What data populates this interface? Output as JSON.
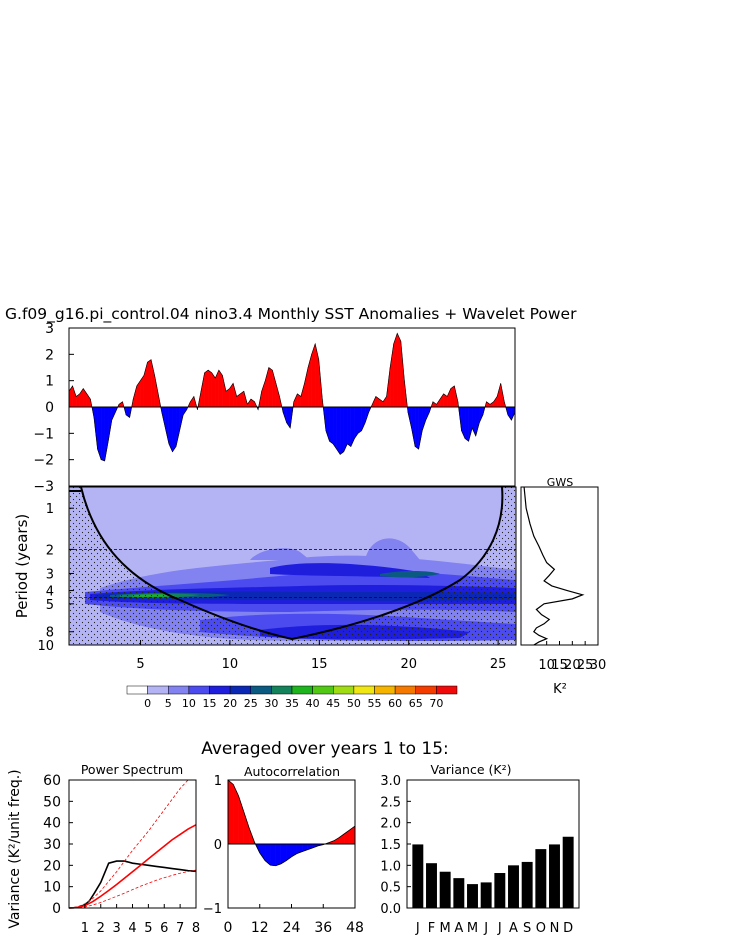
{
  "figure": {
    "main_title": "G.f09_g16.pi_control.04 nino3.4 Monthly SST Anomalies + Wavelet Power",
    "averaged_title": "Averaged over years 1 to 15:"
  },
  "chart_data": [
    {
      "id": "ts",
      "type": "area",
      "title": "G.f09_g16.pi_control.04 nino3.4 Monthly SST Anomalies + Wavelet Power",
      "xlabel": "",
      "ylabel": "",
      "xlim": [
        1,
        26
      ],
      "ylim": [
        -3,
        3
      ],
      "yticks": [
        -3,
        -2,
        -1,
        0,
        1,
        2,
        3
      ],
      "x": [
        1.0,
        1.2,
        1.4,
        1.6,
        1.8,
        2.0,
        2.2,
        2.4,
        2.6,
        2.8,
        3.0,
        3.2,
        3.4,
        3.6,
        3.8,
        4.0,
        4.2,
        4.4,
        4.6,
        4.8,
        5.0,
        5.2,
        5.4,
        5.6,
        5.8,
        6.0,
        6.2,
        6.4,
        6.6,
        6.8,
        7.0,
        7.2,
        7.4,
        7.6,
        7.8,
        8.0,
        8.2,
        8.4,
        8.6,
        8.8,
        9.0,
        9.2,
        9.4,
        9.6,
        9.8,
        10.0,
        10.2,
        10.4,
        10.6,
        10.8,
        11.0,
        11.2,
        11.4,
        11.6,
        11.8,
        12.0,
        12.2,
        12.4,
        12.6,
        12.8,
        13.0,
        13.2,
        13.4,
        13.6,
        13.8,
        14.0,
        14.2,
        14.4,
        14.6,
        14.8,
        15.0,
        15.2,
        15.4,
        15.6,
        15.8,
        16.0,
        16.2,
        16.4,
        16.6,
        16.8,
        17.0,
        17.2,
        17.4,
        17.6,
        17.8,
        18.0,
        18.2,
        18.4,
        18.6,
        18.8,
        19.0,
        19.2,
        19.4,
        19.6,
        19.8,
        20.0,
        20.2,
        20.4,
        20.6,
        20.8,
        21.0,
        21.2,
        21.4,
        21.6,
        21.8,
        22.0,
        22.2,
        22.4,
        22.6,
        22.8,
        23.0,
        23.2,
        23.4,
        23.6,
        23.8,
        24.0,
        24.2,
        24.4,
        24.6,
        24.8,
        25.0,
        25.2,
        25.4,
        25.6,
        25.8,
        26.0
      ],
      "values": [
        0.6,
        0.8,
        0.4,
        0.5,
        0.7,
        0.5,
        0.3,
        -0.4,
        -1.6,
        -2.0,
        -2.05,
        -1.3,
        -0.5,
        -0.2,
        0.1,
        0.2,
        -0.3,
        -0.4,
        0.3,
        0.8,
        1.0,
        1.2,
        1.7,
        1.8,
        1.2,
        0.5,
        -0.2,
        -0.8,
        -1.4,
        -1.7,
        -1.5,
        -0.9,
        -0.3,
        -0.1,
        0.2,
        0.4,
        -0.1,
        0.6,
        1.3,
        1.4,
        1.3,
        1.1,
        1.4,
        1.2,
        0.6,
        0.7,
        0.9,
        0.4,
        0.5,
        0.6,
        0.1,
        0.3,
        0.2,
        -0.1,
        0.6,
        1.0,
        1.5,
        1.4,
        0.9,
        0.4,
        -0.2,
        -0.6,
        -0.8,
        0.2,
        0.5,
        0.4,
        0.9,
        1.5,
        2.0,
        2.4,
        1.8,
        0.3,
        -0.9,
        -1.3,
        -1.4,
        -1.6,
        -1.8,
        -1.7,
        -1.4,
        -1.5,
        -1.2,
        -1.0,
        -0.9,
        -0.6,
        -0.2,
        0.1,
        0.4,
        0.3,
        0.2,
        0.4,
        1.5,
        2.4,
        2.8,
        2.5,
        1.0,
        -0.2,
        -0.8,
        -1.5,
        -1.6,
        -0.9,
        -0.5,
        -0.2,
        0.2,
        0.1,
        0.3,
        0.5,
        0.4,
        0.7,
        0.8,
        0.2,
        -0.9,
        -1.2,
        -1.3,
        -0.8,
        -1.1,
        -0.6,
        -0.3,
        0.2,
        0.1,
        0.2,
        0.4,
        0.9,
        0.2,
        -0.3,
        -0.5,
        -0.2
      ],
      "positive_color": "#ff0000",
      "negative_color": "#0000ff"
    },
    {
      "id": "wavelet",
      "type": "heatmap",
      "xlabel": "",
      "ylabel": "Period (years)",
      "xlim": [
        1,
        26
      ],
      "xticks": [
        5,
        10,
        15,
        20,
        25
      ],
      "ylim": [
        0.7,
        10
      ],
      "yscale": "log",
      "yticks": [
        1,
        2,
        3,
        4,
        5,
        8,
        10
      ],
      "dashed_periods": [
        2,
        4.5
      ],
      "colorbar": {
        "labels": [
          "0",
          "5",
          "10",
          "15",
          "20",
          "25",
          "30",
          "35",
          "40",
          "45",
          "50",
          "55",
          "60",
          "65",
          "70"
        ],
        "colors": [
          "#ffffff",
          "#b4b4f5",
          "#8282f0",
          "#4b4bf0",
          "#1e1edc",
          "#0a28b4",
          "#0a5a82",
          "#14825a",
          "#1eb41e",
          "#50c814",
          "#a0dc14",
          "#f0e614",
          "#f5b400",
          "#f57800",
          "#f53c00",
          "#f00a0a"
        ]
      }
    },
    {
      "id": "gws",
      "type": "line",
      "title": "GWS",
      "xlabel": "K²",
      "xlim": [
        0,
        30
      ],
      "xticks": [
        10,
        15,
        20,
        25,
        30
      ],
      "period": [
        0.7,
        1.0,
        1.3,
        1.6,
        1.9,
        2.2,
        2.5,
        2.8,
        3.1,
        3.4,
        3.7,
        4.0,
        4.3,
        4.6,
        5.0,
        5.5,
        6.0,
        6.5,
        7.0,
        7.5,
        8.0,
        8.5,
        9.0,
        9.5,
        10.0
      ],
      "values": [
        1.2,
        2.0,
        3.5,
        5.0,
        7.0,
        8.5,
        10.0,
        13.0,
        11.0,
        9.0,
        12.0,
        18.0,
        24.0,
        20.0,
        9.0,
        6.0,
        8.0,
        11.0,
        9.0,
        6.0,
        5.0,
        7.0,
        10.0,
        7.0,
        5.0
      ]
    },
    {
      "id": "power",
      "type": "line",
      "title": "Power Spectrum",
      "ylabel": "Variance (K²/unit freq.)",
      "xlim": [
        0,
        8
      ],
      "xticks": [
        1,
        2,
        3,
        4,
        5,
        6,
        7,
        8
      ],
      "ylim": [
        0,
        60
      ],
      "yticks": [
        0,
        10,
        20,
        30,
        40,
        50,
        60
      ],
      "series": [
        {
          "name": "spectrum",
          "color": "#000000",
          "x": [
            0.0,
            0.3,
            0.6,
            1.0,
            1.3,
            1.6,
            2.0,
            2.5,
            3.0,
            3.5,
            4.0,
            4.5,
            5.0,
            5.5,
            6.0,
            6.5,
            7.0,
            7.5,
            8.0
          ],
          "values": [
            0.0,
            0.1,
            0.4,
            1.5,
            3.5,
            7.0,
            12.0,
            21.0,
            22.0,
            22.0,
            21.0,
            20.5,
            20.0,
            19.5,
            19.0,
            18.5,
            18.0,
            17.5,
            17.2
          ]
        },
        {
          "name": "red noise",
          "color": "#ff0000",
          "x": [
            0.0,
            0.5,
            1.0,
            1.5,
            2.0,
            2.5,
            3.0,
            3.5,
            4.0,
            4.5,
            5.0,
            5.5,
            6.0,
            6.5,
            7.0,
            7.5,
            8.0
          ],
          "values": [
            0.0,
            0.2,
            1.1,
            3.0,
            5.5,
            8.2,
            11.0,
            14.0,
            17.0,
            20.0,
            23.0,
            26.0,
            29.0,
            32.0,
            34.5,
            37.0,
            39.0
          ]
        },
        {
          "name": "upper bound",
          "color": "#ff0000",
          "dashed": true,
          "x": [
            0.0,
            0.5,
            1.0,
            1.5,
            2.0,
            2.5,
            3.0,
            3.5,
            4.0,
            4.5,
            5.0,
            5.5,
            6.0,
            6.5,
            7.0,
            7.5
          ],
          "values": [
            0.0,
            0.5,
            2.0,
            4.5,
            8.0,
            12.5,
            17.0,
            22.0,
            27.0,
            31.5,
            36.0,
            41.0,
            46.0,
            51.0,
            56.0,
            60.0
          ]
        },
        {
          "name": "lower bound",
          "color": "#ff0000",
          "dashed": true,
          "x": [
            0.0,
            0.5,
            1.0,
            1.5,
            2.0,
            2.5,
            3.0,
            3.5,
            4.0,
            4.5,
            5.0,
            5.5,
            6.0,
            6.5,
            7.0,
            7.5,
            8.0
          ],
          "values": [
            0.0,
            0.1,
            0.5,
            1.4,
            2.6,
            4.0,
            5.5,
            7.0,
            8.6,
            10.2,
            11.6,
            13.0,
            14.2,
            15.3,
            16.3,
            17.1,
            17.8
          ]
        }
      ]
    },
    {
      "id": "autocorr",
      "type": "area",
      "title": "Autocorrelation",
      "xlim": [
        0,
        48
      ],
      "xticks": [
        0,
        12,
        24,
        36,
        48
      ],
      "ylim": [
        -1,
        1
      ],
      "yticks": [
        -1,
        0,
        1
      ],
      "x": [
        0,
        2,
        4,
        6,
        8,
        10,
        12,
        14,
        16,
        18,
        20,
        22,
        24,
        26,
        28,
        30,
        32,
        34,
        36,
        38,
        40,
        42,
        44,
        46,
        48
      ],
      "values": [
        1.0,
        0.93,
        0.75,
        0.5,
        0.25,
        0.03,
        -0.14,
        -0.26,
        -0.33,
        -0.34,
        -0.31,
        -0.26,
        -0.2,
        -0.15,
        -0.12,
        -0.09,
        -0.06,
        -0.03,
        -0.01,
        0.02,
        0.05,
        0.1,
        0.16,
        0.22,
        0.28
      ],
      "positive_color": "#ff0000",
      "negative_color": "#0000ff"
    },
    {
      "id": "variance",
      "type": "bar",
      "title": "Variance (K²)",
      "categories": [
        "J",
        "F",
        "M",
        "A",
        "M",
        "J",
        "J",
        "A",
        "S",
        "O",
        "N",
        "D"
      ],
      "values": [
        1.49,
        1.05,
        0.85,
        0.7,
        0.56,
        0.6,
        0.82,
        1.0,
        1.08,
        1.38,
        1.49,
        1.67
      ],
      "ylim": [
        0,
        3
      ],
      "yticks": [
        "0.0",
        "0.5",
        "1.0",
        "1.5",
        "2.0",
        "2.5",
        "3.0"
      ]
    }
  ]
}
